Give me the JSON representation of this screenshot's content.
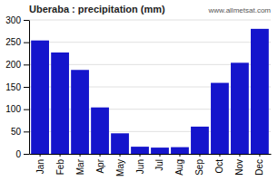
{
  "chart_data": {
    "type": "bar",
    "title": "Uberaba : precipitation (mm)",
    "categories": [
      "Jan",
      "Feb",
      "Mar",
      "Apr",
      "May",
      "Jun",
      "Jul",
      "Aug",
      "Sep",
      "Oct",
      "Nov",
      "Dec"
    ],
    "values": [
      254,
      227,
      188,
      104,
      46,
      16,
      14,
      15,
      61,
      159,
      204,
      280
    ],
    "color": "#1515cc",
    "ylim": [
      0,
      300
    ],
    "yticks": [
      0,
      50,
      100,
      150,
      200,
      250,
      300
    ],
    "grid": true,
    "annotation": "www.allmetsat.com"
  }
}
